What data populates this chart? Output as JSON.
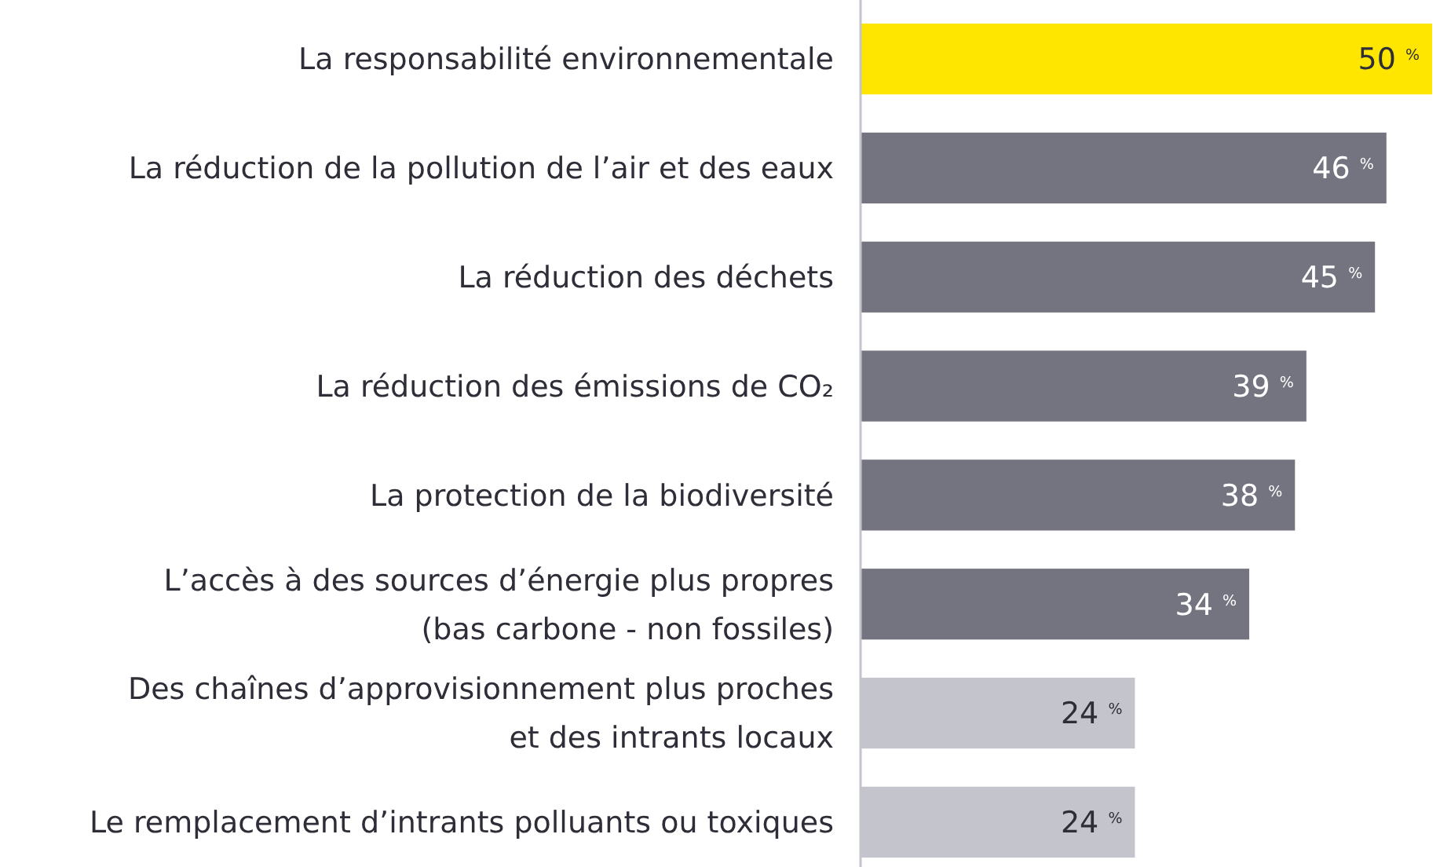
{
  "chart_data": {
    "type": "bar",
    "orientation": "horizontal",
    "categories": [
      "La responsabilité environnementale",
      "La réduction de la pollution de l’air et des eaux",
      "La réduction des déchets",
      "La réduction des émissions de CO₂",
      "La protection de la biodiversité",
      "L’accès à des sources d’énergie plus propres\n(bas carbone - non fossiles)",
      "Des chaînes d’approvisionnement plus proches\net des intrants locaux",
      "Le remplacement d’intrants polluants ou toxiques"
    ],
    "values": [
      50,
      46,
      45,
      39,
      38,
      34,
      24,
      24
    ],
    "colors": [
      "#ffe600",
      "#747480",
      "#747480",
      "#747480",
      "#747480",
      "#747480",
      "#c4c4cd",
      "#c4c4cd"
    ],
    "value_labels": [
      "50 $^{%}$",
      "46 $^{%}$",
      "45 $^{%}$",
      "39 $^{%}$",
      "38 $^{%}$",
      "34 $^{%}$",
      "24 $^{%}$",
      "24 $^{%}$"
    ]
  }
}
